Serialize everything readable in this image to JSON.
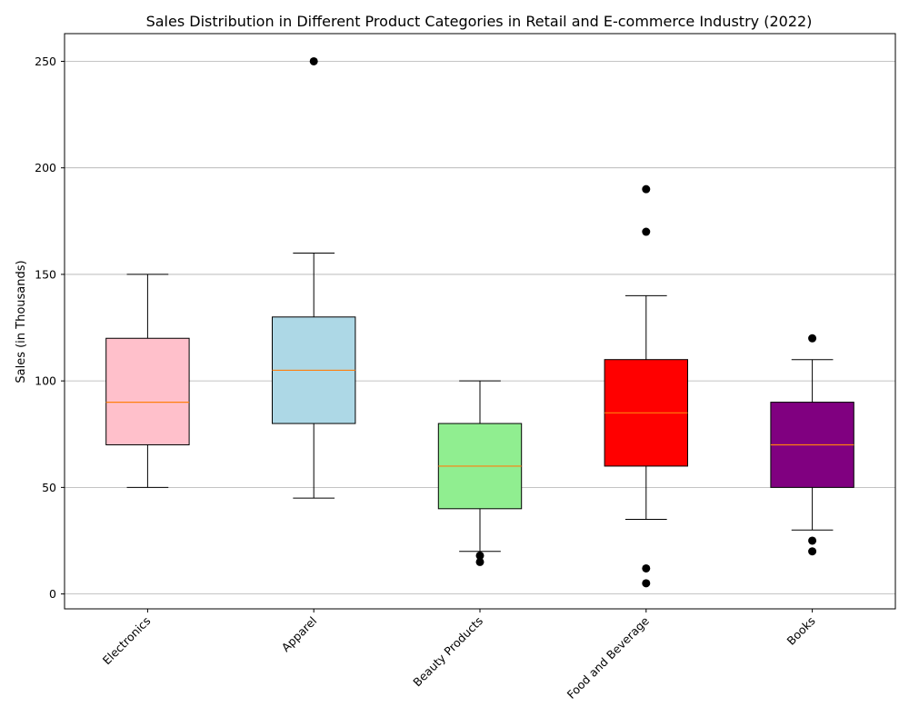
{
  "chart_data": {
    "type": "box",
    "title": "Sales Distribution in Different Product Categories in Retail and E-commerce Industry (2022)",
    "xlabel": "",
    "ylabel": "Sales (in Thousands)",
    "ylim": [
      -7,
      263
    ],
    "yticks": [
      0,
      50,
      100,
      150,
      200,
      250
    ],
    "grid": "horizontal",
    "categories": [
      "Electronics",
      "Apparel",
      "Beauty Products",
      "Food and Beverage",
      "Books"
    ],
    "boxes": [
      {
        "category": "Electronics",
        "whisker_low": 50,
        "q1": 70,
        "median": 90,
        "q3": 120,
        "whisker_high": 150,
        "outliers": [],
        "color": "#ffc0cb"
      },
      {
        "category": "Apparel",
        "whisker_low": 45,
        "q1": 80,
        "median": 105,
        "q3": 130,
        "whisker_high": 160,
        "outliers": [
          250
        ],
        "color": "#add8e6"
      },
      {
        "category": "Beauty Products",
        "whisker_low": 20,
        "q1": 40,
        "median": 60,
        "q3": 80,
        "whisker_high": 100,
        "outliers": [
          18,
          15
        ],
        "color": "#90ee90"
      },
      {
        "category": "Food and Beverage",
        "whisker_low": 35,
        "q1": 60,
        "median": 85,
        "q3": 110,
        "whisker_high": 140,
        "outliers": [
          190,
          170,
          12,
          5
        ],
        "color": "#ff0000"
      },
      {
        "category": "Books",
        "whisker_low": 30,
        "q1": 50,
        "median": 70,
        "q3": 90,
        "whisker_high": 110,
        "outliers": [
          120,
          25,
          20
        ],
        "color": "#800080"
      }
    ],
    "median_color": "#ff7f0e"
  }
}
